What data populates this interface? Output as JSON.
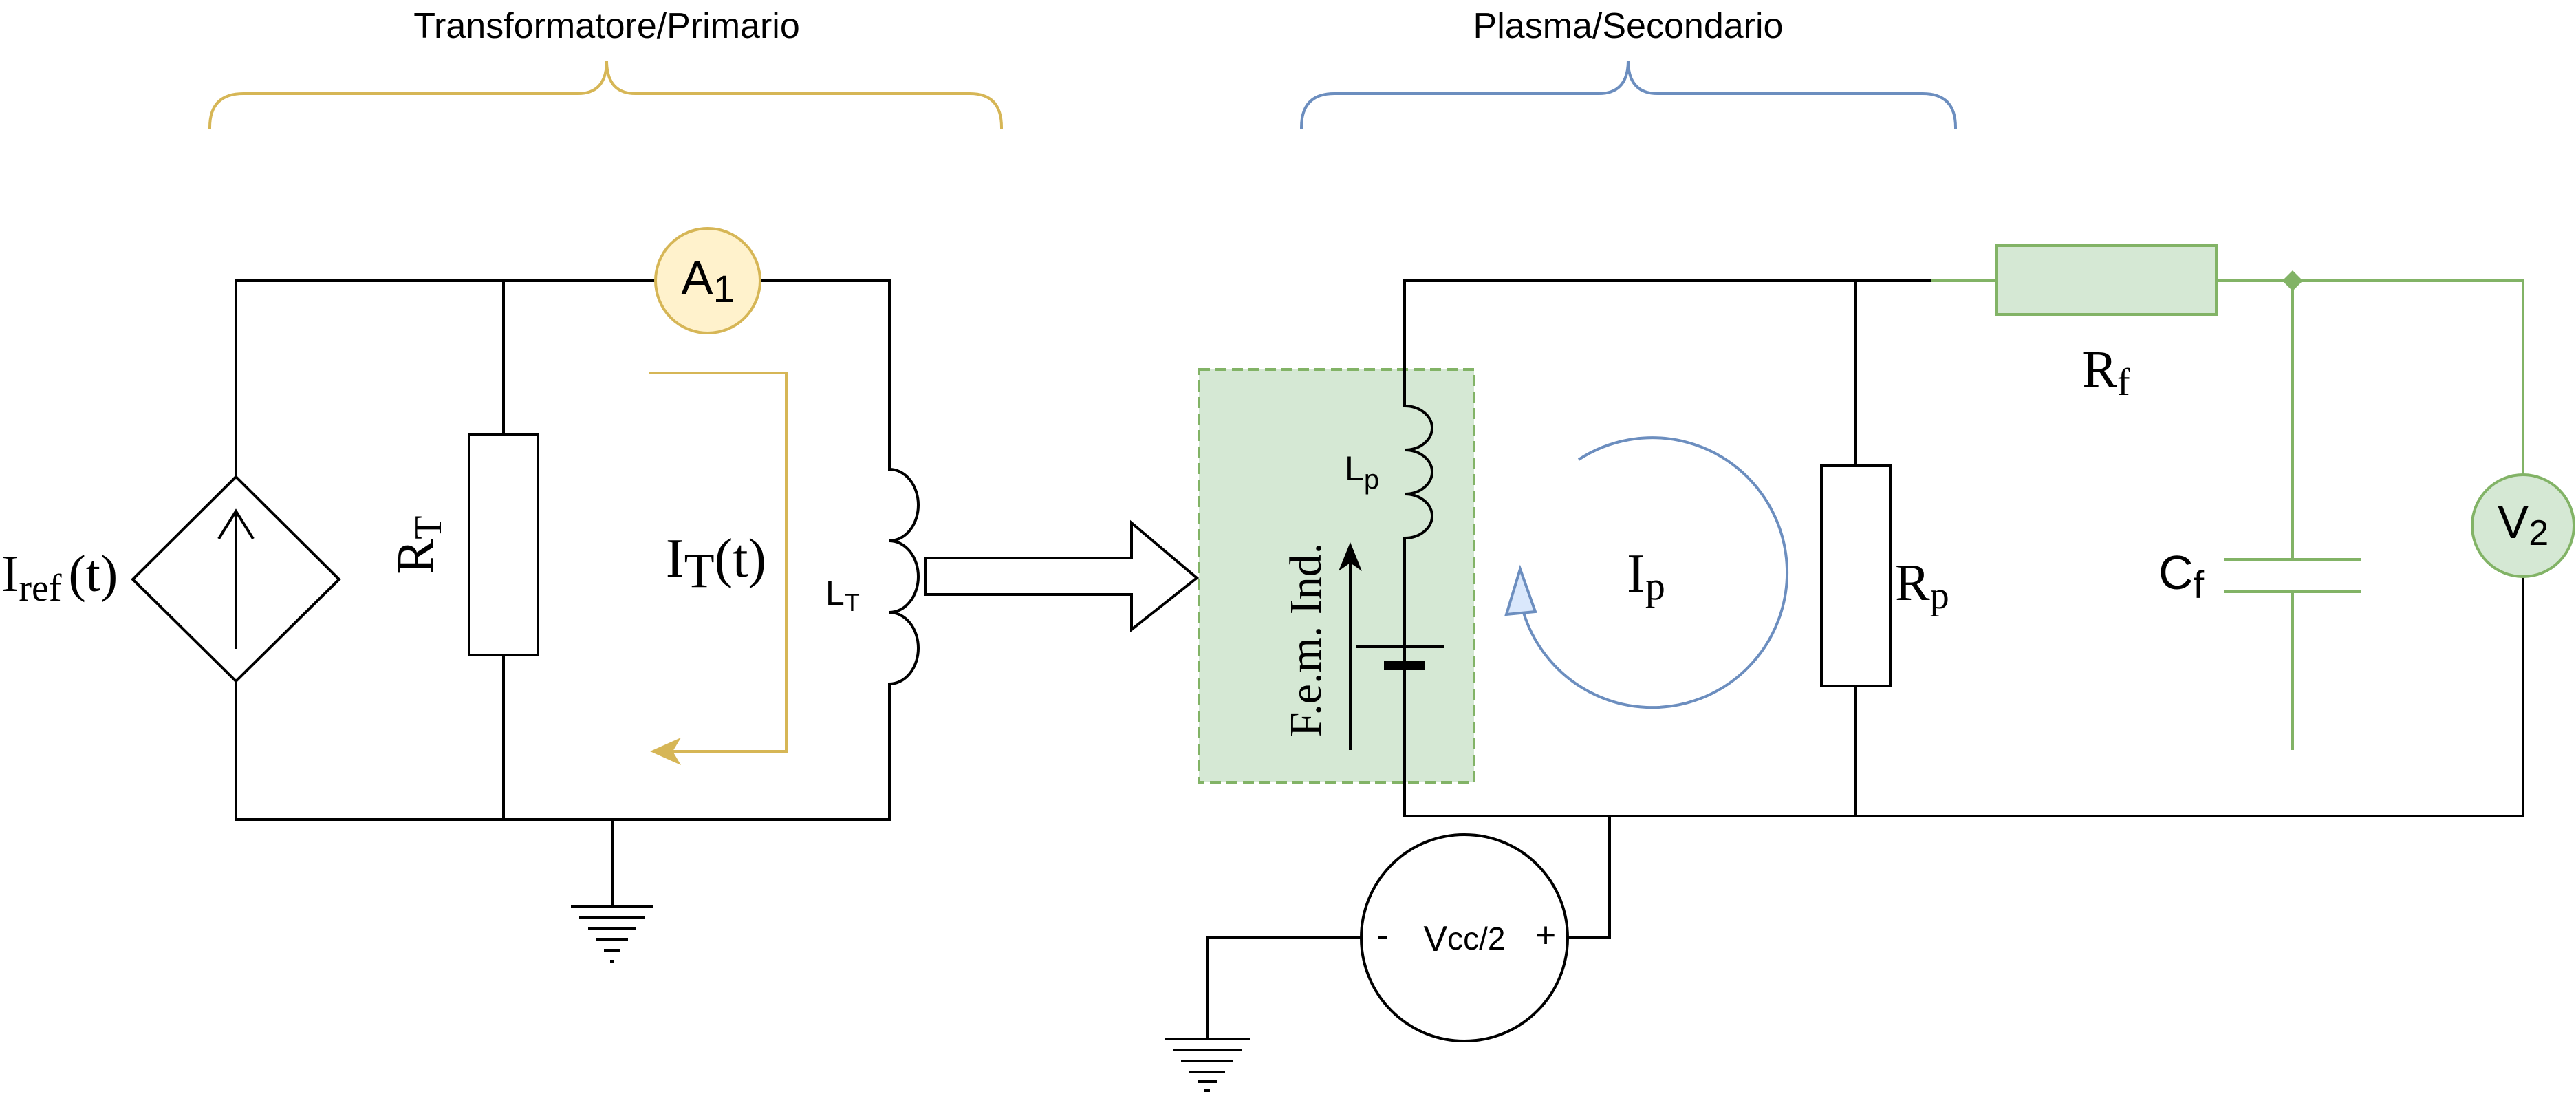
{
  "colors": {
    "wire": "#000000",
    "primary_brace": "#d6b656",
    "secondary_brace": "#6c8ebf",
    "ammeter_fill": "#fff2cc",
    "filter_fill": "#d5e8d4",
    "filter_stroke": "#82b366",
    "current_arrow_primary": "#d6b656",
    "current_arrow_plasma": "#6c8ebf"
  },
  "groups": {
    "primary": "Transformatore/Primario",
    "secondary": "Plasma/Secondario"
  },
  "labels": {
    "iref_main": "I",
    "iref_sub": "ref",
    "iref_tail": "(t)",
    "rt_main": "R",
    "rt_sub": "T",
    "it_main": "I",
    "it_sub": "T",
    "it_tail": "(t)",
    "lt_main": "L",
    "lt_sub": "T",
    "a1_main": "A",
    "a1_sub": "1",
    "lp_main": "L",
    "lp_sub": "p",
    "fem": "F.e.m. Ind.",
    "ip_main": "I",
    "ip_sub": "p",
    "rp_main": "R",
    "rp_sub": "p",
    "rf_main": "R",
    "rf_sub": "f",
    "cf_main": "C",
    "cf_sub": "f",
    "v2_main": "V",
    "v2_sub": "2",
    "vcc_main": "V",
    "vcc_sub": "cc/2",
    "vcc_minus": "-",
    "vcc_plus": "+"
  }
}
